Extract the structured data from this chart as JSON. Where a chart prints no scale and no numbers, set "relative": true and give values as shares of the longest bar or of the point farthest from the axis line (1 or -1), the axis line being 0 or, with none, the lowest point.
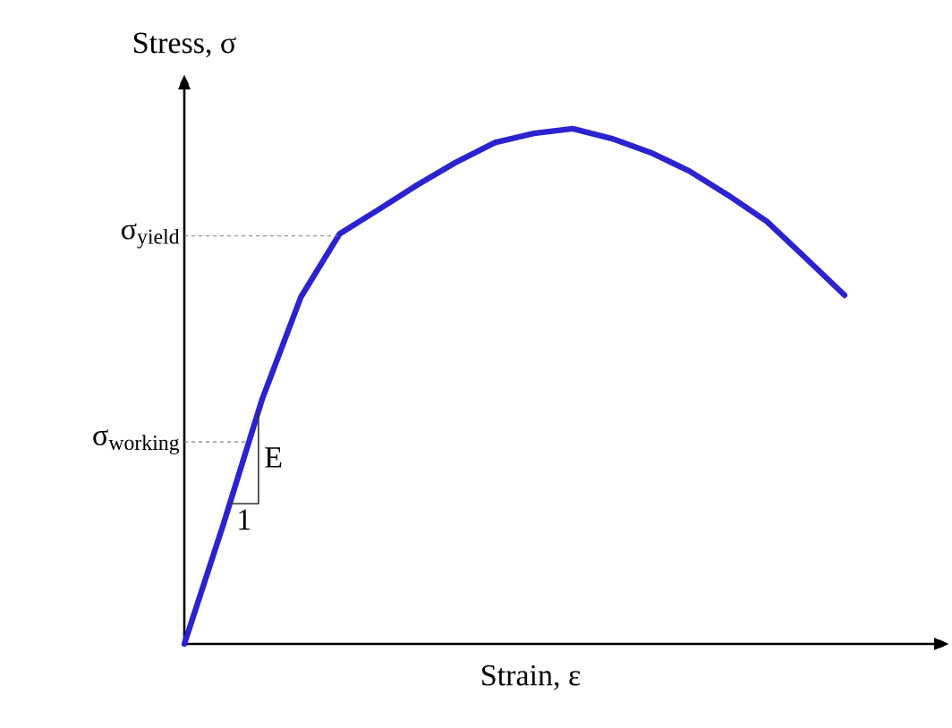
{
  "chart_data": {
    "type": "line",
    "xlabel": "Strain, ε",
    "ylabel": "Stress, σ",
    "categories": [
      null,
      null,
      null,
      null,
      null,
      null,
      null,
      null,
      null,
      null,
      null,
      null,
      null,
      null,
      null,
      null,
      null,
      null
    ],
    "series": [
      {
        "color": "#2b22d0",
        "values": [
          0,
          0.231,
          0.474,
          0.673,
          0.796,
          0.843,
          0.891,
          0.935,
          0.973,
          0.991,
          1,
          0.981,
          0.954,
          0.918,
          0.871,
          0.82,
          0.749,
          0.677
        ]
      }
    ],
    "relative": true,
    "ref_lines": [
      {
        "axis": "y",
        "value": 0.792,
        "label": "σ$_{yield}$",
        "line_style": "dashed"
      },
      {
        "axis": "y",
        "value": 0.392,
        "label": "σ$_{working}$",
        "line_style": "dashed"
      }
    ],
    "annotations": [
      "E",
      "1"
    ],
    "marker": "none",
    "line_style": "solid"
  }
}
